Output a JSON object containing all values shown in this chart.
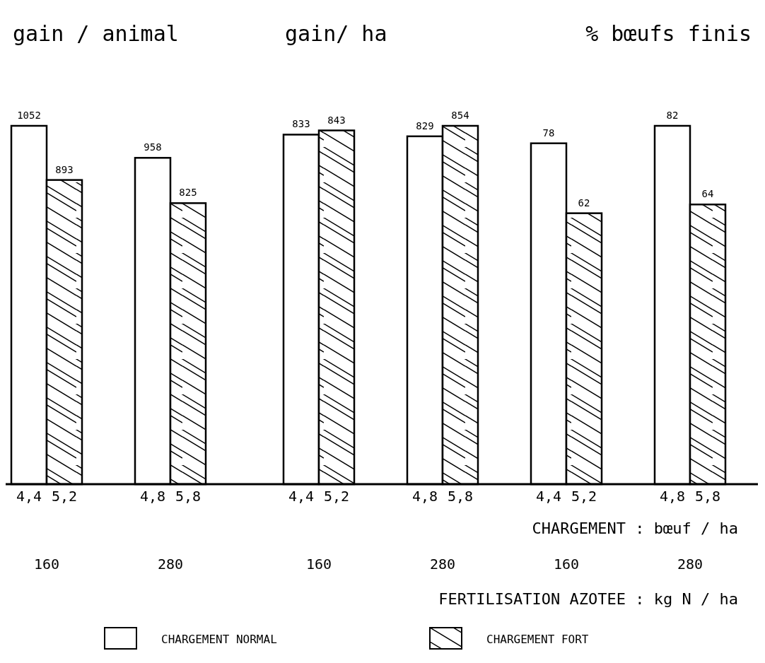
{
  "chart_data": [
    {
      "type": "bar",
      "title": "gain / animal",
      "categories": [
        "4,4",
        "5,2",
        "4,8",
        "5,8"
      ],
      "series": [
        {
          "name": "CHARGEMENT NORMAL",
          "color": "#ffffff",
          "values": [
            1052,
            null,
            958,
            null
          ]
        },
        {
          "name": "CHARGEMENT FORT",
          "color": "#000000",
          "values": [
            null,
            893,
            null,
            825
          ]
        }
      ],
      "data_labels": true,
      "legend": "bottom",
      "annotations": [
        "160",
        "280"
      ]
    },
    {
      "type": "bar",
      "title": "gain/ ha",
      "categories": [
        "4,4",
        "5,2",
        "4,8",
        "5,8"
      ],
      "series": [
        {
          "color": "#ffffff",
          "values": [
            833,
            null,
            829,
            null
          ]
        },
        {
          "color": "#000000",
          "values": [
            null,
            843,
            null,
            854
          ]
        }
      ],
      "data_labels": true,
      "annotations": [
        "160",
        "280"
      ]
    },
    {
      "type": "bar",
      "title": "% bœufs finis",
      "categories": [
        "4,4",
        "5,2",
        "4,8",
        "5,8"
      ],
      "series": [
        {
          "color": "#ffffff",
          "values": [
            78,
            null,
            82,
            null
          ]
        },
        {
          "color": "#000000",
          "values": [
            null,
            62,
            null,
            64
          ]
        }
      ],
      "data_labels": true,
      "xlabel": "CHARGEMENT  :  bœuf / ha",
      "annotations": [
        "160",
        "280",
        "FERTILISATION AZOTEE  :  kg N / ha"
      ]
    }
  ]
}
